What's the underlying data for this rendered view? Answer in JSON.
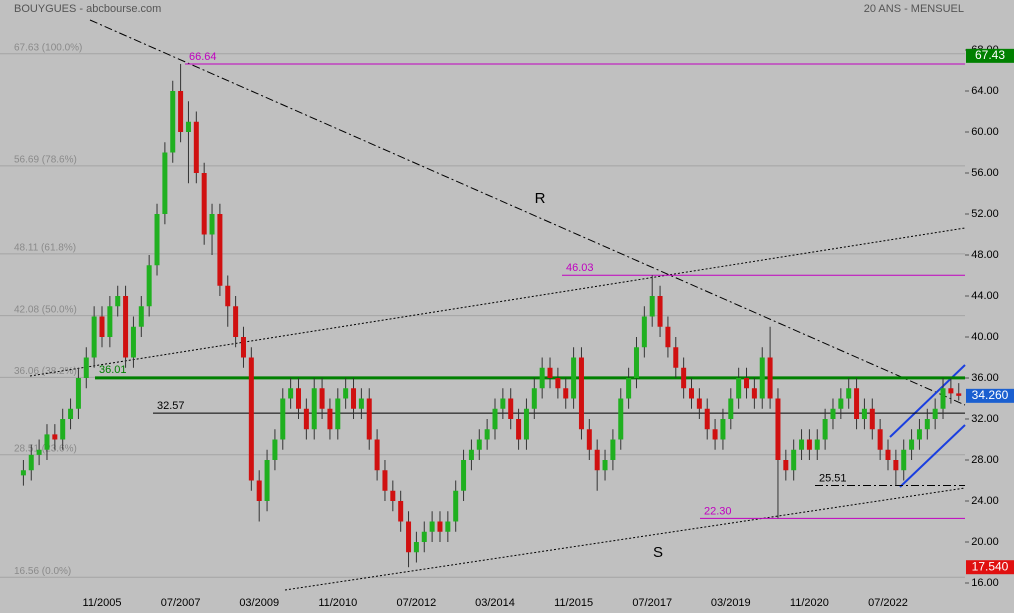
{
  "chart_data": {
    "type": "candlestick",
    "title": "BOUYGUES - abcbourse.com",
    "subtitle": "20 ANS - MENSUEL",
    "x": [
      "03/2004",
      "05/2004",
      "07/2004",
      "09/2004",
      "11/2004",
      "01/2005",
      "03/2005",
      "05/2005",
      "07/2005",
      "09/2005",
      "11/2005",
      "01/2006",
      "03/2006",
      "05/2006",
      "07/2006",
      "09/2006",
      "11/2006",
      "01/2007",
      "03/2007",
      "05/2007",
      "07/2007",
      "09/2007",
      "11/2007",
      "01/2008",
      "03/2008",
      "05/2008",
      "07/2008",
      "09/2008",
      "11/2008",
      "01/2009",
      "03/2009",
      "05/2009",
      "07/2009",
      "09/2009",
      "11/2009",
      "01/2010",
      "03/2010",
      "05/2010",
      "07/2010",
      "09/2010",
      "11/2010",
      "01/2011",
      "03/2011",
      "05/2011",
      "07/2011",
      "09/2011",
      "11/2011",
      "01/2012",
      "03/2012",
      "05/2012",
      "07/2012",
      "09/2012",
      "11/2012",
      "01/2013",
      "03/2013",
      "05/2013",
      "07/2013",
      "09/2013",
      "11/2013",
      "01/2014",
      "03/2014",
      "05/2014",
      "07/2014",
      "09/2014",
      "11/2014",
      "01/2015",
      "03/2015",
      "05/2015",
      "07/2015",
      "09/2015",
      "11/2015",
      "01/2016",
      "03/2016",
      "05/2016",
      "07/2016",
      "09/2016",
      "11/2016",
      "01/2017",
      "03/2017",
      "05/2017",
      "07/2017",
      "09/2017",
      "11/2017",
      "01/2018",
      "03/2018",
      "05/2018",
      "07/2018",
      "09/2018",
      "11/2018",
      "01/2019",
      "03/2019",
      "05/2019",
      "07/2019",
      "09/2019",
      "11/2019",
      "01/2020",
      "03/2020",
      "05/2020",
      "07/2020",
      "09/2020",
      "11/2020",
      "01/2021",
      "03/2021",
      "05/2021",
      "07/2021",
      "09/2021",
      "11/2021",
      "01/2022",
      "03/2022",
      "05/2022",
      "07/2022",
      "09/2022",
      "11/2022",
      "01/2023",
      "03/2023",
      "05/2023",
      "07/2023",
      "09/2023",
      "11/2023",
      "01/2024"
    ],
    "open": [
      26.5,
      27,
      28.5,
      29,
      30.5,
      30,
      32,
      33,
      36,
      38,
      42,
      40,
      43,
      44,
      38,
      41,
      43,
      47,
      52,
      58,
      64,
      60,
      61,
      56,
      50,
      52,
      45,
      43,
      40,
      38,
      26,
      24,
      28,
      30,
      34,
      35,
      33,
      31,
      35,
      33,
      31,
      34,
      35,
      33,
      34,
      30,
      27,
      25,
      24,
      22,
      19,
      20,
      21,
      22,
      21,
      22,
      25,
      28,
      29,
      30,
      31,
      33,
      34,
      32,
      30,
      33,
      35,
      37,
      36,
      35,
      34,
      38,
      31,
      29,
      27,
      28,
      30,
      34,
      36,
      39,
      42,
      44,
      41,
      39,
      37,
      35,
      34,
      33,
      31,
      30,
      32,
      34,
      36,
      35,
      34,
      38,
      34,
      28,
      27,
      29,
      30,
      29,
      30,
      32,
      33,
      34,
      35,
      32,
      33,
      31,
      29,
      28,
      27,
      29,
      30,
      31,
      32,
      33,
      35,
      34.5
    ],
    "high": [
      28,
      29.5,
      30,
      31.5,
      31.5,
      33,
      34,
      37,
      39,
      43,
      43,
      44,
      45,
      45,
      42,
      44,
      48,
      53,
      59,
      65,
      66.64,
      63,
      62,
      57,
      53,
      53,
      46,
      44,
      41,
      39,
      27,
      29,
      31,
      35,
      36,
      36,
      34,
      36,
      36,
      34,
      35,
      36,
      36,
      35,
      35,
      31,
      28,
      26,
      25,
      23,
      21,
      22,
      23,
      23,
      23,
      26,
      29,
      30,
      31,
      32,
      34,
      35,
      35,
      33,
      34,
      36,
      38,
      38,
      37,
      36,
      39,
      39,
      32,
      30,
      29,
      31,
      35,
      37,
      40,
      43,
      46.03,
      45,
      42,
      40,
      38,
      36,
      35,
      34,
      32,
      33,
      35,
      37,
      37,
      36,
      39,
      41,
      35,
      29,
      30,
      31,
      31,
      31,
      33,
      34,
      35,
      36,
      36,
      34,
      34,
      32,
      30,
      29,
      30,
      31,
      32,
      33,
      34,
      36,
      36,
      35.5
    ],
    "low": [
      25.5,
      26,
      27.5,
      28,
      29,
      29,
      31,
      32,
      35,
      37,
      39,
      39,
      42,
      37,
      37,
      40,
      42,
      46,
      51,
      57,
      59,
      55,
      55,
      49,
      48,
      44,
      41,
      39,
      37,
      25,
      22,
      23,
      27,
      29,
      33,
      32,
      30,
      30,
      32,
      30,
      30,
      33,
      32,
      32,
      29,
      26,
      24,
      23,
      21,
      17.54,
      18,
      19,
      20,
      20,
      20,
      21,
      24,
      27,
      28,
      29,
      30,
      32,
      31,
      29,
      29,
      32,
      34,
      35,
      34,
      33,
      33,
      30,
      28,
      25,
      26,
      27,
      29,
      33,
      35,
      38,
      41,
      40,
      38,
      36,
      34,
      33,
      32,
      30,
      29,
      29,
      31,
      33,
      34,
      33,
      33,
      33,
      22.3,
      26,
      26,
      28,
      28,
      28,
      29,
      31,
      32,
      33,
      31,
      31,
      30,
      28,
      27,
      25.51,
      26,
      28,
      29,
      30,
      31,
      32,
      33.5,
      33.8
    ],
    "close": [
      27,
      28.5,
      29,
      30.5,
      30,
      32,
      33,
      36,
      38,
      42,
      40,
      43,
      44,
      38,
      41,
      43,
      47,
      52,
      58,
      64,
      60,
      61,
      56,
      50,
      52,
      45,
      43,
      40,
      38,
      26,
      24,
      28,
      30,
      34,
      35,
      33,
      31,
      35,
      33,
      31,
      34,
      35,
      33,
      34,
      30,
      27,
      25,
      24,
      22,
      19,
      20,
      21,
      22,
      21,
      22,
      25,
      28,
      29,
      30,
      31,
      33,
      34,
      32,
      30,
      33,
      35,
      37,
      36,
      35,
      34,
      38,
      31,
      29,
      27,
      28,
      30,
      34,
      36,
      39,
      42,
      44,
      41,
      39,
      37,
      35,
      34,
      33,
      31,
      30,
      32,
      34,
      36,
      35,
      34,
      38,
      34,
      28,
      27,
      29,
      30,
      29,
      30,
      32,
      33,
      34,
      35,
      32,
      33,
      31,
      29,
      28,
      27,
      29,
      30,
      31,
      32,
      33,
      35,
      34.5,
      34.26
    ],
    "up_color": "#20b020",
    "down_color": "#d01010",
    "ylim": [
      16,
      68
    ],
    "yticks": [
      {
        "value": 16,
        "label": "16.00"
      },
      {
        "value": 20,
        "label": "20.00"
      },
      {
        "value": 24,
        "label": "24.00"
      },
      {
        "value": 28,
        "label": "28.00"
      },
      {
        "value": 32,
        "label": "32.00"
      },
      {
        "value": 36,
        "label": "36.00"
      },
      {
        "value": 40,
        "label": "40.00"
      },
      {
        "value": 44,
        "label": "44.00"
      },
      {
        "value": 48,
        "label": "48.00"
      },
      {
        "value": 52,
        "label": "52.00"
      },
      {
        "value": 56,
        "label": "56.00"
      },
      {
        "value": 60,
        "label": "60.00"
      },
      {
        "value": 64,
        "label": "64.00"
      },
      {
        "value": 68,
        "label": "68.00"
      }
    ],
    "xticks": [
      "11/2005",
      "07/2007",
      "03/2009",
      "11/2010",
      "07/2012",
      "03/2014",
      "11/2015",
      "07/2017",
      "03/2019",
      "11/2020",
      "07/2022"
    ],
    "levels": [
      {
        "value": 66.64,
        "label": "66.64",
        "color": "#c000c0"
      },
      {
        "value": 46.03,
        "label": "46.03",
        "color": "#c000c0"
      },
      {
        "value": 22.3,
        "label": "22.30",
        "color": "#c000c0"
      },
      {
        "value": 36.01,
        "label": "36.01",
        "color": "#008000"
      },
      {
        "value": 32.57,
        "label": "32.57",
        "color": "#000000"
      },
      {
        "value": 25.51,
        "label": "25.51",
        "color": "#000000"
      }
    ],
    "fib_levels": [
      {
        "value": 67.63,
        "label": "67.63 (100.0%)"
      },
      {
        "value": 56.69,
        "label": "56.69 (78.6%)"
      },
      {
        "value": 48.11,
        "label": "48.11 (61.8%)"
      },
      {
        "value": 42.08,
        "label": "42.08 (50.0%)"
      },
      {
        "value": 36.06,
        "label": "36.06 (38.2%)"
      },
      {
        "value": 28.51,
        "label": "28.51 (23.6%)"
      },
      {
        "value": 16.56,
        "label": "16.56 (0.0%)"
      }
    ],
    "price_tags": [
      {
        "value": 67.43,
        "label": "67.43",
        "color": "#008000"
      },
      {
        "value": 34.26,
        "label": "34.260",
        "color": "#1a5fd0"
      },
      {
        "value": 17.54,
        "label": "17.540",
        "color": "#e01010"
      }
    ],
    "annotations": [
      "R",
      "S"
    ]
  }
}
